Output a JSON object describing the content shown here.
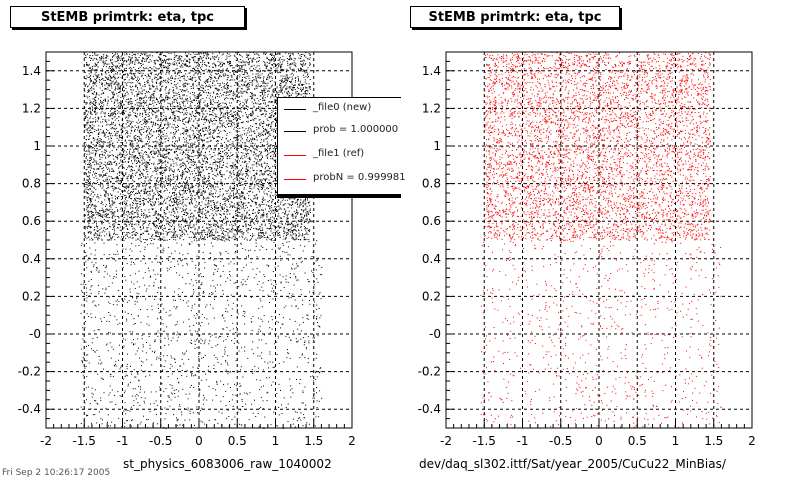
{
  "colors": {
    "series_new": "#000000",
    "series_ref": "#ff0000",
    "frame": "#000000",
    "background": "#ffffff"
  },
  "panels": [
    {
      "title": "StEMB primtrk: eta, tpc",
      "file_label": "st_physics_6083006_raw_1040002"
    },
    {
      "title": "StEMB primtrk: eta, tpc",
      "file_label": "dev/daq_sl302.ittf/Sat/year_2005/CuCu22_MinBias/"
    }
  ],
  "legend": {
    "entries": [
      {
        "label": "_file0 (new)",
        "color": "#000000"
      },
      {
        "label": "prob = 1.000000",
        "color": "#000000"
      },
      {
        "label": "_file1 (ref)",
        "color": "#ff0000"
      },
      {
        "label": "probN = 0.999981",
        "color": "#ff0000"
      }
    ]
  },
  "footer_text": "Fri Sep 2 10:26:17 2005",
  "chart_data": [
    {
      "type": "scatter",
      "title": "StEMB primtrk: eta, tpc",
      "xlabel": "st_physics_6083006_raw_1040002",
      "ylabel": "",
      "xlim": [
        -2,
        2
      ],
      "ylim": [
        -0.5,
        1.5
      ],
      "xticks": [
        "-2",
        "-1.5",
        "-1",
        "-0.5",
        "0",
        "0.5",
        "1",
        "1.5",
        "2"
      ],
      "yticks": [
        "-0.4",
        "-0.2",
        "-0",
        "0.2",
        "0.4",
        "0.6",
        "0.8",
        "1",
        "1.2",
        "1.4"
      ],
      "grid": true,
      "series": [
        {
          "name": "_file0 (new)",
          "color": "#000000",
          "regions": [
            {
              "x": [
                -1.5,
                1.45
              ],
              "y": [
                0.5,
                1.5
              ],
              "count": 9000
            },
            {
              "x": [
                -1.55,
                1.6
              ],
              "y": [
                -0.5,
                0.5
              ],
              "count": 1400
            }
          ]
        }
      ]
    },
    {
      "type": "scatter",
      "title": "StEMB primtrk: eta, tpc",
      "xlabel": "dev/daq_sl302.ittf/Sat/year_2005/CuCu22_MinBias/",
      "ylabel": "",
      "xlim": [
        -2,
        2
      ],
      "ylim": [
        -0.5,
        1.5
      ],
      "xticks": [
        "-2",
        "-1.5",
        "-1",
        "-0.5",
        "0",
        "0.5",
        "1",
        "1.5",
        "2"
      ],
      "yticks": [
        "-0.4",
        "-0.2",
        "-0",
        "0.2",
        "0.4",
        "0.6",
        "0.8",
        "1",
        "1.2",
        "1.4"
      ],
      "grid": true,
      "series": [
        {
          "name": "_file1 (ref)",
          "color": "#ff0000",
          "regions": [
            {
              "x": [
                -1.5,
                1.45
              ],
              "y": [
                0.5,
                1.5
              ],
              "count": 5500
            },
            {
              "x": [
                -1.55,
                1.6
              ],
              "y": [
                -0.5,
                0.5
              ],
              "count": 800
            }
          ]
        }
      ]
    }
  ]
}
